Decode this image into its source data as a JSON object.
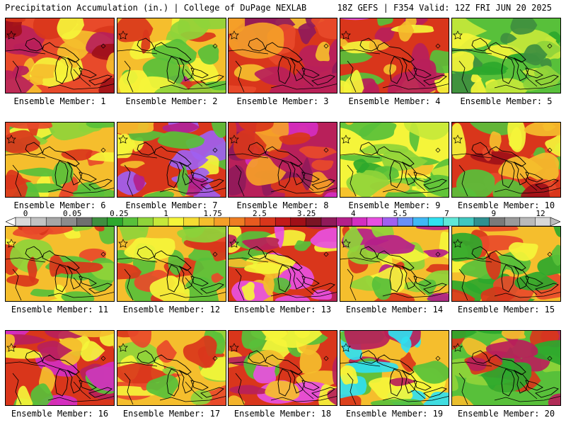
{
  "header": {
    "left": "Precipitation Accumulation (in.) | College of DuPage NEXLAB",
    "right": "18Z GEFS | F354 Valid: 12Z FRI JUN 20 2025"
  },
  "colorbar": {
    "labels": [
      "0",
      "0.05",
      "0.25",
      "1",
      "1.75",
      "2.5",
      "3.25",
      "4",
      "5.5",
      "7",
      "9",
      "12"
    ],
    "colors": [
      "#d9d9d9",
      "#c2c2c2",
      "#a6a6a6",
      "#8c8c8c",
      "#6f6f6f",
      "#3f8f3f",
      "#2da82d",
      "#58c03a",
      "#8fd43a",
      "#c6e83a",
      "#f5f53a",
      "#f5dc32",
      "#f5be2d",
      "#f59f28",
      "#ef7d23",
      "#e85a1f",
      "#d9361b",
      "#c21a1a",
      "#a01018",
      "#7a1424",
      "#901a5a",
      "#b4208a",
      "#d42ec0",
      "#e850e0",
      "#a060f0",
      "#6a90f5",
      "#40b8f5",
      "#30e0f0",
      "#60e8d8",
      "#40c8c0",
      "#309090",
      "#7a7a7a",
      "#9a9a9a",
      "#bababa",
      "#d8d8d8"
    ],
    "left_arrow": "#ffffff",
    "right_arrow": "#bdbdbd"
  },
  "members": [
    {
      "label": "Ensemble Member: 1",
      "palette": [
        "#e84a2a",
        "#d9361b",
        "#b8205a",
        "#f5be2d",
        "#f5f53a",
        "#a01018"
      ]
    },
    {
      "label": "Ensemble Member: 2",
      "palette": [
        "#f5be2d",
        "#58c03a",
        "#f5f53a",
        "#d9361b",
        "#b4208a",
        "#8fd43a"
      ]
    },
    {
      "label": "Ensemble Member: 3",
      "palette": [
        "#d9361b",
        "#b8205a",
        "#e84a2a",
        "#f59f28",
        "#901a5a",
        "#f5be2d"
      ]
    },
    {
      "label": "Ensemble Member: 4",
      "palette": [
        "#d9361b",
        "#f5be2d",
        "#b8205a",
        "#58c03a",
        "#f5f53a",
        "#e850e0"
      ]
    },
    {
      "label": "Ensemble Member: 5",
      "palette": [
        "#58c03a",
        "#8fd43a",
        "#2da82d",
        "#c6e83a",
        "#f5f53a",
        "#3f8f3f"
      ]
    },
    {
      "label": "Ensemble Member: 6",
      "palette": [
        "#f5be2d",
        "#d9361b",
        "#f5f53a",
        "#58c03a",
        "#e84a2a",
        "#8fd43a"
      ]
    },
    {
      "label": "Ensemble Member: 7",
      "palette": [
        "#d9361b",
        "#58c03a",
        "#f5f53a",
        "#b4208a",
        "#f5be2d",
        "#a060f0"
      ]
    },
    {
      "label": "Ensemble Member: 8",
      "palette": [
        "#b8205a",
        "#d9361b",
        "#901a5a",
        "#e84a2a",
        "#f59f28",
        "#d42ec0"
      ]
    },
    {
      "label": "Ensemble Member: 9",
      "palette": [
        "#f5f53a",
        "#58c03a",
        "#c6e83a",
        "#f5be2d",
        "#2da82d",
        "#8fd43a"
      ]
    },
    {
      "label": "Ensemble Member: 10",
      "palette": [
        "#d9361b",
        "#f5be2d",
        "#58c03a",
        "#a01018",
        "#f5f53a",
        "#e84a2a"
      ]
    },
    {
      "label": "Ensemble Member: 11",
      "palette": [
        "#f5be2d",
        "#d9361b",
        "#f5f53a",
        "#58c03a",
        "#e84a2a",
        "#8fd43a"
      ]
    },
    {
      "label": "Ensemble Member: 12",
      "palette": [
        "#f5be2d",
        "#58c03a",
        "#f5f53a",
        "#d9361b",
        "#8fd43a",
        "#e84a2a"
      ]
    },
    {
      "label": "Ensemble Member: 13",
      "palette": [
        "#d9361b",
        "#f5be2d",
        "#b8205a",
        "#58c03a",
        "#f5f53a",
        "#e850e0"
      ]
    },
    {
      "label": "Ensemble Member: 14",
      "palette": [
        "#f5be2d",
        "#d9361b",
        "#58c03a",
        "#f5f53a",
        "#b4208a",
        "#8fd43a"
      ]
    },
    {
      "label": "Ensemble Member: 15",
      "palette": [
        "#f5be2d",
        "#58c03a",
        "#d9361b",
        "#f5f53a",
        "#2da82d",
        "#e84a2a"
      ]
    },
    {
      "label": "Ensemble Member: 16",
      "palette": [
        "#d9361b",
        "#58c03a",
        "#b8205a",
        "#f5f53a",
        "#f5be2d",
        "#d42ec0"
      ]
    },
    {
      "label": "Ensemble Member: 17",
      "palette": [
        "#f5be2d",
        "#d9361b",
        "#f5f53a",
        "#58c03a",
        "#e84a2a",
        "#8fd43a"
      ]
    },
    {
      "label": "Ensemble Member: 18",
      "palette": [
        "#d9361b",
        "#b8205a",
        "#f5be2d",
        "#58c03a",
        "#f5f53a",
        "#e850e0"
      ]
    },
    {
      "label": "Ensemble Member: 19",
      "palette": [
        "#f5be2d",
        "#d9361b",
        "#f5f53a",
        "#b8205a",
        "#58c03a",
        "#30e0f0"
      ]
    },
    {
      "label": "Ensemble Member: 20",
      "palette": [
        "#58c03a",
        "#d9361b",
        "#2da82d",
        "#b8205a",
        "#f5be2d",
        "#8fd43a"
      ]
    }
  ]
}
